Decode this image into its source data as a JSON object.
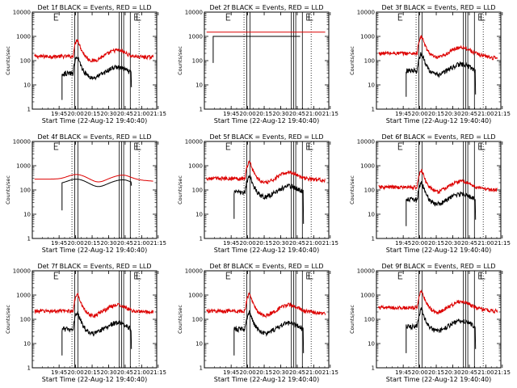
{
  "chart_data": [
    {
      "title": "Det 1f BLACK = Events, RED = LLD",
      "shape_red": "flare",
      "shape_black": "flare",
      "red_base": 150,
      "black_base": 30,
      "red_tail_end": 140,
      "black_tail_end": 30,
      "black_drop_end": 8
    },
    {
      "title": "Det 2f BLACK = Events, RED = LLD",
      "shape_red": "flat",
      "shape_black": "flat",
      "red_base": 1500,
      "black_base": 1000,
      "red_tail_end": 1500,
      "black_tail_end": 1000,
      "black_drop_end": 1000
    },
    {
      "title": "Det 3f BLACK = Events, RED = LLD",
      "shape_red": "flare",
      "shape_black": "flare",
      "red_base": 200,
      "black_base": 40,
      "red_tail_end": 130,
      "black_tail_end": 20,
      "black_drop_end": 4
    },
    {
      "title": "Det 4f BLACK = Events, RED = LLD",
      "shape_red": "wave",
      "shape_black": "wave",
      "red_base": 280,
      "black_base": 180,
      "red_tail_end": 230,
      "black_tail_end": 150,
      "black_drop_end": 150
    },
    {
      "title": "Det 5f BLACK = Events, RED = LLD",
      "shape_red": "flare",
      "shape_black": "flare",
      "red_base": 300,
      "black_base": 80,
      "red_tail_end": 260,
      "black_tail_end": 70,
      "black_drop_end": 4
    },
    {
      "title": "Det 6f BLACK = Events, RED = LLD",
      "shape_red": "flare",
      "shape_black": "flare",
      "red_base": 130,
      "black_base": 40,
      "red_tail_end": 100,
      "black_tail_end": 30,
      "black_drop_end": 6
    },
    {
      "title": "Det 7f BLACK = Events, RED = LLD",
      "shape_red": "flare",
      "shape_black": "flare",
      "red_base": 220,
      "black_base": 40,
      "red_tail_end": 200,
      "black_tail_end": 20,
      "black_drop_end": 6
    },
    {
      "title": "Det 8f BLACK = Events, RED = LLD",
      "shape_red": "flare",
      "shape_black": "flare",
      "red_base": 220,
      "black_base": 40,
      "red_tail_end": 180,
      "black_tail_end": 30,
      "black_drop_end": 4
    },
    {
      "title": "Det 9f BLACK = Events, RED = LLD",
      "shape_red": "flare",
      "shape_black": "flare",
      "red_base": 300,
      "black_base": 50,
      "red_tail_end": 220,
      "black_tail_end": 30,
      "black_drop_end": 6
    }
  ],
  "shared": {
    "type": "line",
    "xlabel": "Start Time (22-Aug-12 19:40:40)",
    "ylabel": "Counts/sec",
    "xticks": [
      "19:45",
      "20:00",
      "20:15",
      "20:30",
      "20:45",
      "21:00",
      "21:15"
    ],
    "yticks": [
      "1",
      "10",
      "100",
      "1000",
      "10000"
    ],
    "x_range_minutes": [
      -20,
      93
    ],
    "ylim": [
      1,
      10000
    ],
    "y_scale": "log",
    "tick_minutes": [
      4.33,
      19.33,
      34.33,
      49.33,
      64.33,
      79.33,
      94.33
    ],
    "series": [
      {
        "name": "Events",
        "color": "#000000"
      },
      {
        "name": "LLD",
        "color": "#dd0000"
      }
    ],
    "solid_vlines_minutes": [
      18.5,
      21.5,
      59,
      61,
      63,
      69
    ],
    "dotted_vlines_minutes": [
      16,
      77
    ],
    "e_markers_minutes": [
      0,
      73
    ],
    "l_marker_minute": 75,
    "f_marker_minute": 59
  }
}
